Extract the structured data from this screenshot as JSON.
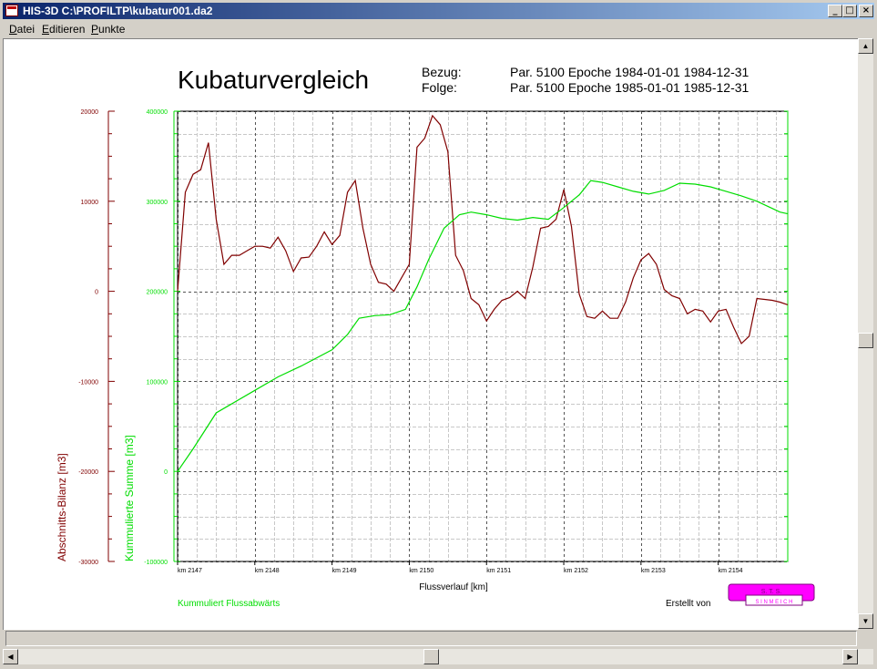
{
  "window": {
    "title": "HIS-3D C:\\PROFILTP\\kubatur001.da2",
    "buttons": {
      "minimize": "_",
      "maximize": "□",
      "close": "×"
    }
  },
  "menu": [
    "Datei",
    "Editieren",
    "Punkte"
  ],
  "header": {
    "title": "Kubaturvergleich",
    "bezug_label": "Bezug:",
    "bezug_value": "Par. 5100  Epoche 1984-01-01 1984-12-31",
    "folge_label": "Folge:",
    "folge_value": "Par. 5100  Epoche 1985-01-01 1985-12-31"
  },
  "footer": {
    "note": "Kummuliert Flussabwärts",
    "created_by": "Erstellt von",
    "logo_top": "S. T. S.",
    "logo_bottom": "S I N M E I C H"
  },
  "colors": {
    "bilanz": "#800000",
    "summe": "#00dd00",
    "logo": "#ff00ff",
    "grid": "#888888"
  },
  "chart_data": {
    "type": "line",
    "xlabel": "Flussverlauf [km]",
    "x_ticks": [
      "km 2147",
      "km 2148",
      "km 2149",
      "km 2150",
      "km 2151",
      "km 2152",
      "km 2153",
      "km 2154"
    ],
    "xlim": [
      2147,
      2154.9
    ],
    "grid": true,
    "left_axis": {
      "label": "Abschnitts-Bilanz [m3]",
      "ticks": [
        "20000",
        "10000",
        "0",
        "-10000",
        "-20000",
        "-30000"
      ],
      "ylim": [
        -30000,
        20000
      ]
    },
    "right_axis": {
      "label": "Kummulierte Summe [m3]",
      "ticks": [
        "400000",
        "300000",
        "200000",
        "100000",
        "0",
        "-100000"
      ],
      "ylim": [
        -100000,
        400000
      ]
    },
    "series": [
      {
        "name": "Abschnitts-Bilanz [m3]",
        "axis": "left",
        "x": [
          2147.0,
          2147.1,
          2147.2,
          2147.3,
          2147.4,
          2147.5,
          2147.6,
          2147.7,
          2147.8,
          2147.9,
          2148.0,
          2148.1,
          2148.2,
          2148.3,
          2148.4,
          2148.5,
          2148.6,
          2148.7,
          2148.8,
          2148.9,
          2149.0,
          2149.1,
          2149.2,
          2149.3,
          2149.4,
          2149.5,
          2149.6,
          2149.7,
          2149.8,
          2149.9,
          2150.0,
          2150.1,
          2150.2,
          2150.3,
          2150.4,
          2150.5,
          2150.6,
          2150.7,
          2150.8,
          2150.9,
          2151.0,
          2151.1,
          2151.2,
          2151.3,
          2151.4,
          2151.5,
          2151.6,
          2151.7,
          2151.8,
          2151.9,
          2152.0,
          2152.1,
          2152.2,
          2152.3,
          2152.4,
          2152.5,
          2152.6,
          2152.7,
          2152.8,
          2152.9,
          2153.0,
          2153.1,
          2153.2,
          2153.3,
          2153.4,
          2153.5,
          2153.6,
          2153.7,
          2153.8,
          2153.9,
          2154.0,
          2154.1,
          2154.2,
          2154.3,
          2154.4,
          2154.5,
          2154.6,
          2154.7,
          2154.8,
          2154.9
        ],
        "values": [
          0,
          11000,
          13000,
          13500,
          16500,
          8000,
          3000,
          4000,
          4000,
          4500,
          5000,
          5000,
          4800,
          6000,
          4500,
          2200,
          3700,
          3800,
          5000,
          6600,
          5200,
          6200,
          11000,
          12300,
          7000,
          3000,
          1000,
          800,
          0,
          1500,
          3000,
          16000,
          17000,
          19500,
          18500,
          15500,
          4000,
          2300,
          -800,
          -1500,
          -3300,
          -2000,
          -1000,
          -700,
          0,
          -800,
          2700,
          7000,
          7200,
          8000,
          11300,
          7200,
          -300,
          -2800,
          -3000,
          -2200,
          -3000,
          -3000,
          -1200,
          1500,
          3500,
          4200,
          3000,
          200,
          -500,
          -800,
          -2500,
          -2000,
          -2200,
          -3400,
          -2200,
          -2000,
          -4000,
          -5800,
          -5000,
          -800,
          -900,
          -1000,
          -1200,
          -1500
        ]
      },
      {
        "name": "Kummulierte Summe [m3]",
        "axis": "right",
        "x": [
          2147.0,
          2147.2,
          2147.5,
          2148.0,
          2148.3,
          2148.6,
          2149.0,
          2149.2,
          2149.35,
          2149.55,
          2149.75,
          2149.95,
          2150.1,
          2150.25,
          2150.45,
          2150.65,
          2150.8,
          2151.0,
          2151.2,
          2151.4,
          2151.6,
          2151.8,
          2152.0,
          2152.2,
          2152.35,
          2152.5,
          2152.7,
          2152.9,
          2153.1,
          2153.3,
          2153.5,
          2153.7,
          2153.9,
          2154.1,
          2154.3,
          2154.5,
          2154.7,
          2154.8,
          2154.9
        ],
        "values": [
          0,
          25000,
          65000,
          90000,
          105000,
          117000,
          135000,
          152000,
          170000,
          173000,
          174000,
          180000,
          205000,
          235000,
          270000,
          285000,
          288000,
          285000,
          281000,
          279000,
          282000,
          280000,
          293000,
          307000,
          323000,
          321000,
          316000,
          311000,
          308000,
          312000,
          320000,
          319000,
          316000,
          311000,
          306000,
          300000,
          292000,
          288000,
          286000
        ]
      }
    ]
  }
}
